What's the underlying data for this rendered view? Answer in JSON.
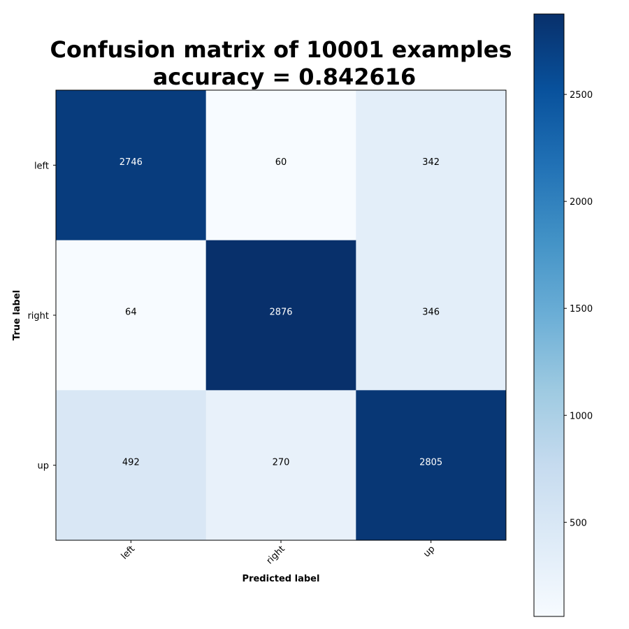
{
  "chart_data": {
    "type": "heatmap",
    "title": "Confusion matrix of 10001 examples",
    "subtitle": "accuracy = 0.842616",
    "xlabel": "Predicted label",
    "ylabel": "True label",
    "x_categories": [
      "left",
      "right",
      "up"
    ],
    "y_categories": [
      "left",
      "right",
      "up"
    ],
    "values": [
      [
        2746,
        60,
        342
      ],
      [
        64,
        2876,
        346
      ],
      [
        492,
        270,
        2805
      ]
    ],
    "colormap": "Blues",
    "colorbar": {
      "min": 60,
      "max": 2876,
      "ticks": [
        500,
        1000,
        1500,
        2000,
        2500
      ]
    },
    "text_colors": {
      "light": "#ffffff",
      "dark": "#000000"
    },
    "grid": false
  }
}
